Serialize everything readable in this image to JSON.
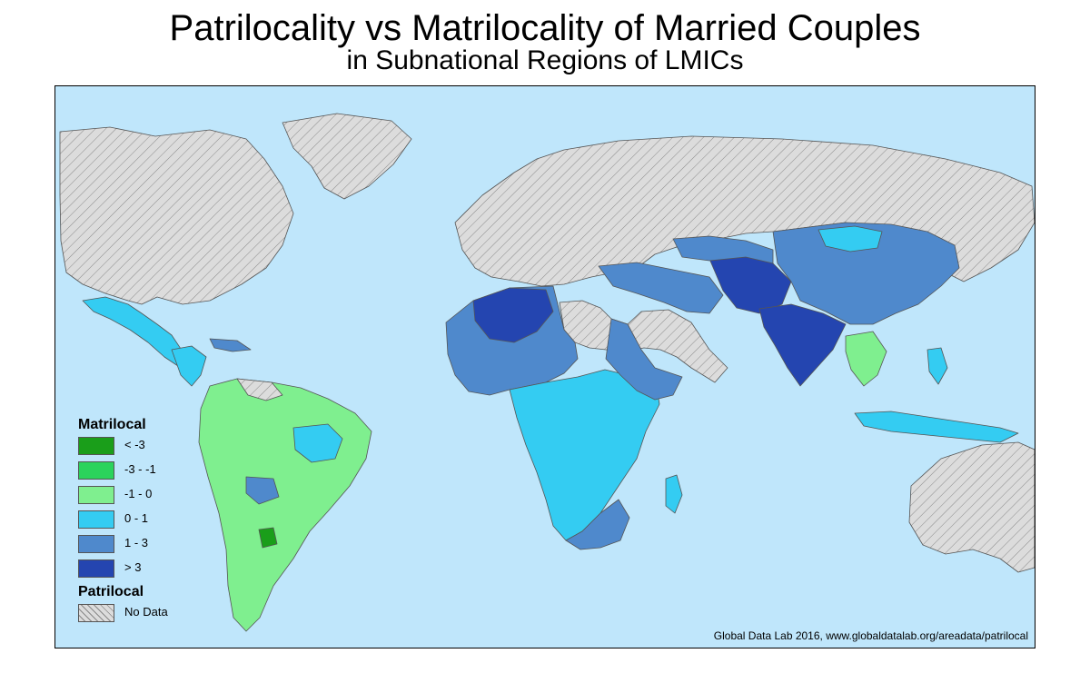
{
  "title": "Patrilocality vs Matrilocality of Married Couples",
  "subtitle": "in Subnational Regions of LMICs",
  "legend": {
    "top_heading": "Matrilocal",
    "bottom_heading": "Patrilocal",
    "classes": [
      {
        "label": "< -3",
        "color": "#1a9e1a"
      },
      {
        "label": "-3 - -1",
        "color": "#2bd35c"
      },
      {
        "label": "-1 - 0",
        "color": "#7fef8f"
      },
      {
        "label": "0 - 1",
        "color": "#34ccf2"
      },
      {
        "label": "1 - 3",
        "color": "#4f89cc"
      },
      {
        "label": "> 3",
        "color": "#2445b0"
      }
    ],
    "no_data": {
      "label": "No Data",
      "color": "#dcdcdc"
    }
  },
  "colors": {
    "ocean": "#bfe6fb",
    "no_data": "#dcdcdc",
    "border": "#555555"
  },
  "credit": "Global Data Lab 2016, www.globaldatalab.org/areadata/patrilocal"
}
